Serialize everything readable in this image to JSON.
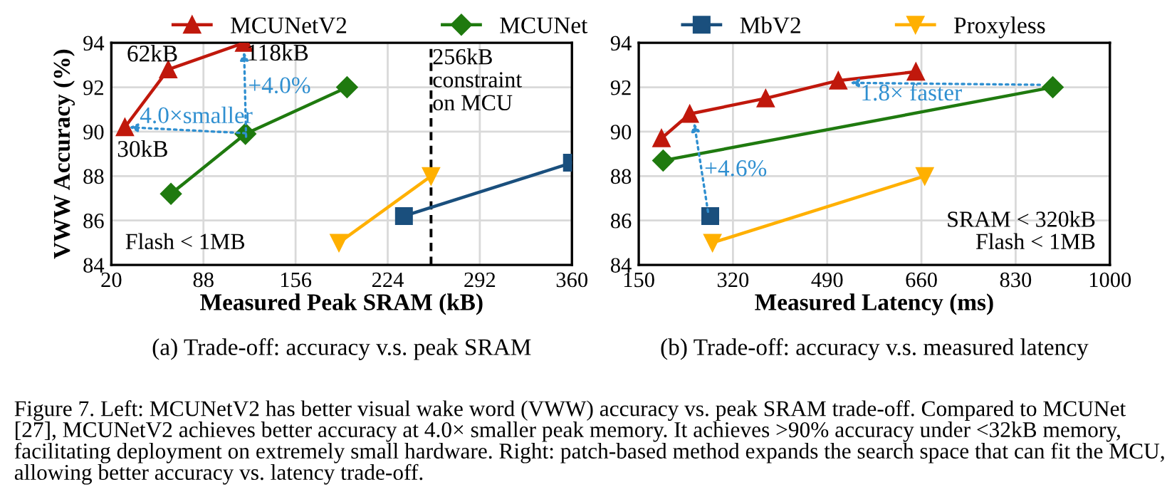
{
  "chart_data": [
    {
      "type": "line",
      "title": "(a) Trade-off: accuracy v.s. peak SRAM",
      "xlabel": "Measured Peak SRAM (kB)",
      "ylabel": "VWW Accuracy (%)",
      "xlim": [
        20,
        360
      ],
      "xticks": [
        20,
        88,
        156,
        224,
        292,
        360
      ],
      "ylim": [
        84,
        94
      ],
      "yticks": [
        84,
        86,
        88,
        90,
        92,
        94
      ],
      "grid": true,
      "legend": "top",
      "series": [
        {
          "name": "MCUNetV2",
          "color": "#c0180c",
          "marker": "triangle",
          "x": [
            30,
            62,
            118
          ],
          "values": [
            90.2,
            92.8,
            94.0
          ]
        },
        {
          "name": "MCUNet",
          "color": "#1f7a0f",
          "marker": "diamond",
          "x": [
            64,
            119,
            194
          ],
          "values": [
            87.2,
            89.9,
            92.0
          ]
        },
        {
          "name": "MbV2",
          "color": "#1a4f7d",
          "marker": "square",
          "x": [
            236,
            360
          ],
          "values": [
            86.2,
            88.6
          ]
        },
        {
          "name": "Proxyless",
          "color": "#ffb000",
          "marker": "triangle_down",
          "x": [
            188,
            256
          ],
          "values": [
            85.0,
            88.0
          ]
        }
      ],
      "ref_lines": [
        {
          "axis": "x",
          "value": 256,
          "label": "256kB\nconstraint\non MCU",
          "color": "#000000",
          "line_style": "dashed"
        }
      ],
      "annotations": [
        {
          "text": "62kB",
          "x": 62,
          "y": 92.8
        },
        {
          "text": "118kB",
          "x": 118,
          "y": 94.0
        },
        {
          "text": "30kB",
          "x": 30,
          "y": 90.2
        },
        {
          "text": "+4.0%",
          "x": 118,
          "y": 93.6
        },
        {
          "text": "4.0×smaller",
          "x": 33,
          "y": 90.2
        },
        "Flash < 1MB",
        "Figure 7. Left: MCUNetV2 has better visual wake word (VWW) accuracy vs. peak SRAM trade-off. Compared to MCUNet [27], MCUNetV2 achieves better accuracy at 4.0× smaller peak memory. It achieves >90% accuracy under <32kB memory, facilitating deployment on extremely small hardware. Right: patch-based method expands the search space that can fit the MCU, allowing better accuracy vs. latency trade-off."
      ]
    },
    {
      "type": "line",
      "title": "(b) Trade-off: accuracy v.s. measured latency",
      "xlabel": "Measured Latency (ms)",
      "xlim": [
        150,
        1000
      ],
      "xticks": [
        150,
        320,
        490,
        660,
        830,
        1000
      ],
      "ylim": [
        84,
        94
      ],
      "yticks": [
        84,
        86,
        88,
        90,
        92,
        94
      ],
      "grid": true,
      "series": [
        {
          "color": "#c0180c",
          "marker": "triangle",
          "x": [
            191,
            242,
            379,
            510,
            650
          ],
          "values": [
            89.7,
            90.8,
            91.5,
            92.3,
            92.7
          ]
        },
        {
          "color": "#1f7a0f",
          "marker": "diamond",
          "x": [
            194,
            897
          ],
          "values": [
            88.7,
            92.0
          ]
        },
        {
          "color": "#1a4f7d",
          "marker": "square",
          "x": [
            279
          ],
          "values": [
            86.2
          ]
        },
        {
          "color": "#ffb000",
          "marker": "triangle_down",
          "x": [
            283,
            666
          ],
          "values": [
            85.0,
            88.0
          ]
        }
      ],
      "annotations": [
        {
          "text": "1.8× faster",
          "x": 531,
          "y": 92.2
        },
        {
          "text": "+4.6%",
          "x": 250,
          "y": 90.4
        },
        "SRAM < 320kB\nFlash < 1MB"
      ]
    }
  ]
}
